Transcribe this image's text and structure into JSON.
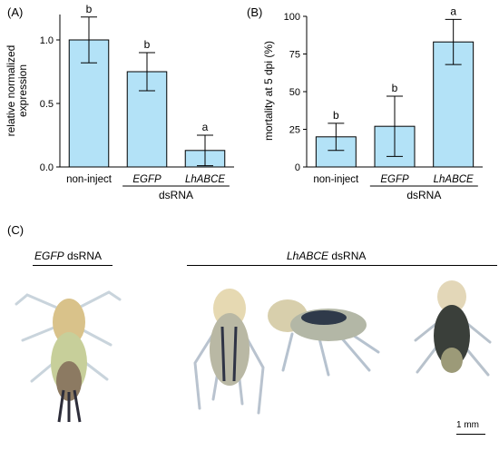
{
  "panels": {
    "a_letter": "(A)",
    "b_letter": "(B)",
    "c_letter": "(C)"
  },
  "colors": {
    "bar_fill": "#b3e2f7",
    "bar_stroke": "#000000"
  },
  "chart_data": [
    {
      "type": "bar",
      "panel": "(A)",
      "categories": [
        "non-inject",
        "EGFP",
        "LhABCE"
      ],
      "values": [
        1.0,
        0.75,
        0.13
      ],
      "errors": [
        0.18,
        0.15,
        0.12
      ],
      "significance": [
        "b",
        "b",
        "a"
      ],
      "ylabel_lines": [
        "relative normalized",
        "expression"
      ],
      "xlabel": "dsRNA",
      "ylim": [
        0,
        1.2
      ],
      "yticks": [
        0.0,
        0.5,
        1.0
      ],
      "ytick_labels": [
        "0.0",
        "0.5",
        "1.0"
      ],
      "italic_categories": [
        false,
        true,
        true
      ],
      "underlined_categories": [
        false,
        true,
        true
      ]
    },
    {
      "type": "bar",
      "panel": "(B)",
      "categories": [
        "non-inject",
        "EGFP",
        "LhABCE"
      ],
      "values": [
        20,
        27,
        83
      ],
      "errors": [
        9,
        20,
        15
      ],
      "significance": [
        "b",
        "b",
        "a"
      ],
      "ylabel": "mortality at 5 dpi (%)",
      "xlabel": "dsRNA",
      "ylim": [
        0,
        100
      ],
      "yticks": [
        0,
        25,
        50,
        75,
        100
      ],
      "ytick_labels": [
        "0",
        "25",
        "50",
        "75",
        "100"
      ],
      "italic_categories": [
        false,
        true,
        true
      ],
      "underlined_categories": [
        false,
        true,
        true
      ]
    }
  ],
  "photos": {
    "egfp_label_gene": "EGFP",
    "egfp_label_suffix": " dsRNA",
    "lhabce_label_gene": "LhABCE",
    "lhabce_label_suffix": " dsRNA",
    "scale_bar_label": "1 mm"
  }
}
